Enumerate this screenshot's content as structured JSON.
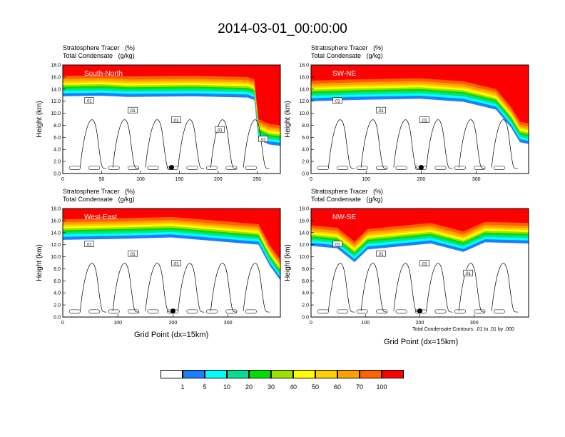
{
  "title": "2014-03-01_00:00:00",
  "panels": [
    {
      "label": "South-North",
      "subtitle1_left": "Stratosphere Tracer",
      "subtitle1_units": "(%)",
      "subtitle2_left": "Total Condensate",
      "subtitle2_units": "(g/kg)",
      "ylabel": "Height (km)",
      "xlabel": "",
      "xmax": 280,
      "xticks": [
        "0",
        "50",
        "100",
        "150",
        "200",
        "250"
      ],
      "yticks": [
        "0.0",
        "2.0",
        "4.0",
        "6.0",
        "8.0",
        "10.0",
        "12.0",
        "14.0",
        "16.0",
        "18.0"
      ],
      "marker": {
        "x": 140,
        "y": 1.0
      },
      "contour_labels": [
        ".01",
        ".01",
        ".01",
        ".01",
        ".01"
      ]
    },
    {
      "label": "SW-NE",
      "subtitle1_left": "Stratosphere Tracer",
      "subtitle1_units": "(%)",
      "subtitle2_left": "Total Condensate",
      "subtitle2_units": "(g/kg)",
      "ylabel": "Height (km)",
      "xlabel": "",
      "xmax": 395,
      "xticks": [
        "0",
        "100",
        "200",
        "300"
      ],
      "yticks": [
        "0.0",
        "2.0",
        "4.0",
        "6.0",
        "8.0",
        "10.0",
        "12.0",
        "14.0",
        "16.0",
        "18.0"
      ],
      "marker": {
        "x": 200,
        "y": 1.0
      },
      "contour_labels": [
        ".01",
        ".01",
        ".01"
      ]
    },
    {
      "label": "West-East",
      "subtitle1_left": "Stratosphere Tracer",
      "subtitle1_units": "(%)",
      "subtitle2_left": "Total Condensate",
      "subtitle2_units": "(g/kg)",
      "ylabel": "Height (km)",
      "xlabel": "Grid Point (dx=15km)",
      "xmax": 395,
      "xticks": [
        "0",
        "100",
        "200",
        "300"
      ],
      "yticks": [
        "0.0",
        "2.0",
        "4.0",
        "6.0",
        "8.0",
        "10.0",
        "12.0",
        "14.0",
        "16.0",
        "18.0"
      ],
      "marker": {
        "x": 200,
        "y": 1.0
      },
      "contour_labels": [
        ".01",
        ".01",
        ".01"
      ]
    },
    {
      "label": "NW-SE",
      "subtitle1_left": "Stratosphere Tracer",
      "subtitle1_units": "(%)",
      "subtitle2_left": "Total Condensate",
      "subtitle2_units": "(g/kg)",
      "ylabel": "Height (km)",
      "xlabel": "Grid Point (dx=15km)",
      "xmax": 400,
      "xticks": [
        "0",
        "100",
        "200",
        "300"
      ],
      "yticks": [
        "0.0",
        "2.0",
        "4.0",
        "6.0",
        "8.0",
        "10.0",
        "12.0",
        "14.0",
        "16.0",
        "18.0"
      ],
      "marker": {
        "x": 200,
        "y": 1.0
      },
      "contour_labels": [
        ".01",
        ".01",
        ".01",
        ".01"
      ]
    }
  ],
  "contour_note": "Total Condensate Contours: .01 to .01 by .000",
  "colorbar": {
    "labels": [
      "1",
      "5",
      "10",
      "20",
      "30",
      "40",
      "50",
      "60",
      "70",
      "100"
    ],
    "colors": [
      "#ffffff",
      "#1e7cff",
      "#00ffff",
      "#00e090",
      "#00e000",
      "#a0e000",
      "#ffff00",
      "#ffd000",
      "#ffa000",
      "#ff6000",
      "#ff0000"
    ]
  },
  "chart_data": {
    "type": "heatmap",
    "title": "2014-03-01_00:00:00",
    "ylabel": "Height (km)",
    "xlabel": "Grid Point (dx=15km)",
    "ylim": [
      0,
      18
    ],
    "levels": [
      1,
      5,
      10,
      20,
      30,
      40,
      50,
      60,
      70,
      100
    ],
    "panels": [
      "South-North",
      "SW-NE",
      "West-East",
      "NW-SE"
    ]
  }
}
